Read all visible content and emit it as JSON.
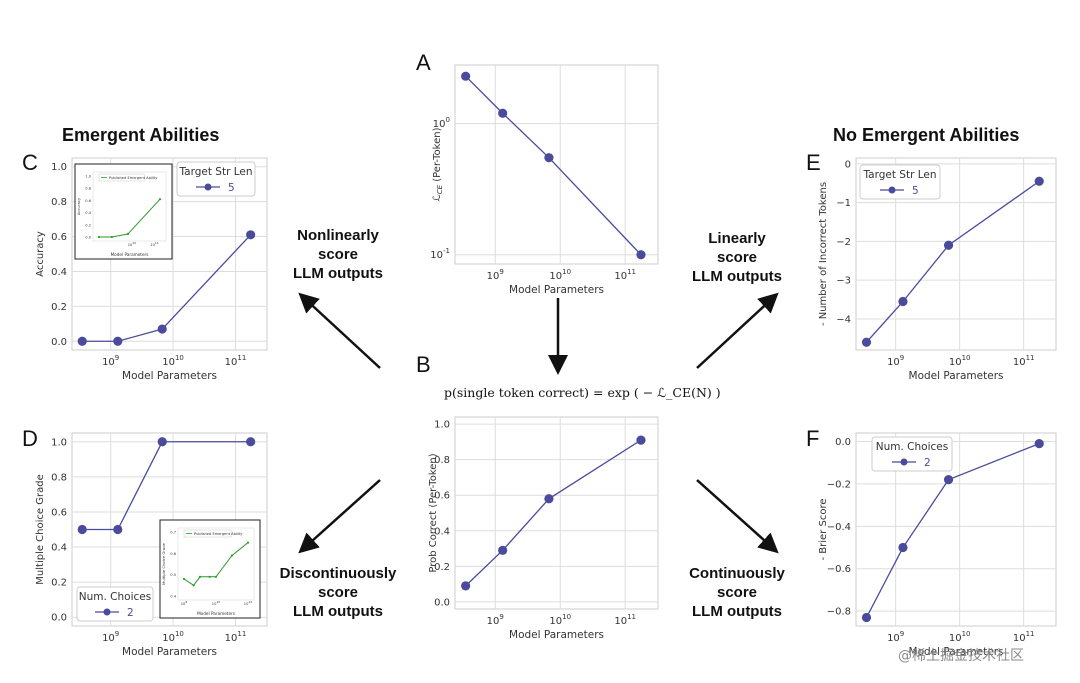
{
  "headings": {
    "left": "Emergent Abilities",
    "right": "No Emergent Abilities"
  },
  "captions": {
    "nonlinear": [
      "Nonlinearly",
      "score",
      "LLM outputs"
    ],
    "linear": [
      "Linearly",
      "score",
      "LLM outputs"
    ],
    "discontinuous": [
      "Discontinuously",
      "score",
      "LLM outputs"
    ],
    "continuous": [
      "Continuously",
      "score",
      "LLM outputs"
    ]
  },
  "formula": "p(single token correct) = exp ( − ℒ_CE(N) )",
  "watermark": "@稀土掘金技术社区",
  "colors": {
    "series": "#4b4b9c",
    "inset": "#2a9a2a",
    "grid": "#dddddd",
    "frame": "#cccccc"
  },
  "chart_data": [
    {
      "id": "A",
      "letter": "A",
      "type": "line",
      "log_y": true,
      "title": "",
      "xlabel": "Model Parameters",
      "ylabel": "ℒCE (Per-Token)",
      "x": [
        350000000.0,
        1300000000.0,
        6700000000.0,
        175000000000.0
      ],
      "values": [
        2.3,
        1.2,
        0.55,
        0.1
      ],
      "xlim": [
        240000000.0,
        320000000000.0
      ],
      "ylim": [
        0.085,
        2.8
      ],
      "xticks": [
        "10^9",
        "10^10",
        "10^11"
      ],
      "yticks": [
        "10^0",
        "10^-1"
      ]
    },
    {
      "id": "B",
      "letter": "B",
      "type": "line",
      "xlabel": "Model Parameters",
      "ylabel": "Prob Correct (Per-Token)",
      "x": [
        350000000.0,
        1300000000.0,
        6700000000.0,
        175000000000.0
      ],
      "values": [
        0.09,
        0.29,
        0.58,
        0.91
      ],
      "xlim": [
        240000000.0,
        320000000000.0
      ],
      "ylim": [
        -0.04,
        1.04
      ],
      "xticks": [
        "10^9",
        "10^10",
        "10^11"
      ],
      "yticks": [
        "0.0",
        "0.2",
        "0.4",
        "0.6",
        "0.8",
        "1.0"
      ]
    },
    {
      "id": "C",
      "letter": "C",
      "type": "line",
      "xlabel": "Model Parameters",
      "ylabel": "Accuracy",
      "x": [
        350000000.0,
        1300000000.0,
        6700000000.0,
        175000000000.0
      ],
      "values": [
        0.0,
        0.0,
        0.07,
        0.61
      ],
      "xlim": [
        240000000.0,
        320000000000.0
      ],
      "ylim": [
        -0.05,
        1.05
      ],
      "xticks": [
        "10^9",
        "10^10",
        "10^11"
      ],
      "yticks": [
        "0.0",
        "0.2",
        "0.4",
        "0.6",
        "0.8",
        "1.0"
      ],
      "legend": {
        "title": "Target Str Len",
        "label": "5"
      },
      "inset": {
        "legend": "Published Emergent Ability",
        "xlabel": "Model Parameters",
        "ylabel": "Accuracy",
        "x": [
          350000000.0,
          1300000000.0,
          6700000000.0,
          175000000000.0
        ],
        "values": [
          0.0,
          0.0,
          0.05,
          0.62
        ],
        "yticks": [
          "0.0",
          "0.2",
          "0.4",
          "0.6",
          "0.8",
          "1.0"
        ],
        "xticks": [
          "10^10",
          "10^11"
        ]
      }
    },
    {
      "id": "D",
      "letter": "D",
      "type": "line",
      "xlabel": "Model Parameters",
      "ylabel": "Multiple Choice Grade",
      "x": [
        350000000.0,
        1300000000.0,
        6700000000.0,
        175000000000.0
      ],
      "values": [
        0.5,
        0.5,
        1.0,
        1.0
      ],
      "xlim": [
        240000000.0,
        320000000000.0
      ],
      "ylim": [
        -0.05,
        1.05
      ],
      "xticks": [
        "10^9",
        "10^10",
        "10^11"
      ],
      "yticks": [
        "0.0",
        "0.2",
        "0.4",
        "0.6",
        "0.8",
        "1.0"
      ],
      "legend": {
        "title": "Num. Choices",
        "label": "2"
      },
      "inset": {
        "legend": "Published Emergent Ability",
        "xlabel": "Model Parameters",
        "ylabel": "Multiple Choice Grade",
        "x": [
          100000000.0,
          400000000.0,
          1000000000.0,
          4000000000.0,
          10000000000.0,
          100000000000.0,
          1000000000000.0
        ],
        "values": [
          0.48,
          0.45,
          0.49,
          0.49,
          0.49,
          0.59,
          0.65
        ],
        "yticks": [
          "0.4",
          "0.5",
          "0.6",
          "0.7"
        ],
        "xticks": [
          "10^8",
          "10^10",
          "10^12"
        ]
      }
    },
    {
      "id": "E",
      "letter": "E",
      "type": "line",
      "xlabel": "Model Parameters",
      "ylabel": "- Number of Incorrect Tokens",
      "x": [
        350000000.0,
        1300000000.0,
        6700000000.0,
        175000000000.0
      ],
      "values": [
        -4.6,
        -3.55,
        -2.1,
        -0.45
      ],
      "xlim": [
        240000000.0,
        320000000000.0
      ],
      "ylim": [
        -4.8,
        0.15
      ],
      "xticks": [
        "10^9",
        "10^10",
        "10^11"
      ],
      "yticks": [
        "0",
        "−1",
        "−2",
        "−3",
        "−4"
      ],
      "legend": {
        "title": "Target Str Len",
        "label": "5"
      }
    },
    {
      "id": "F",
      "letter": "F",
      "type": "line",
      "xlabel": "Model Parameters",
      "ylabel": "- Brier Score",
      "x": [
        350000000.0,
        1300000000.0,
        6700000000.0,
        175000000000.0
      ],
      "values": [
        -0.83,
        -0.5,
        -0.18,
        -0.01
      ],
      "xlim": [
        240000000.0,
        320000000000.0
      ],
      "ylim": [
        -0.87,
        0.04
      ],
      "xticks": [
        "10^9",
        "10^10",
        "10^11"
      ],
      "yticks": [
        "0.0",
        "−0.2",
        "−0.4",
        "−0.6",
        "−0.8"
      ],
      "legend": {
        "title": "Num. Choices",
        "label": "2"
      }
    }
  ]
}
